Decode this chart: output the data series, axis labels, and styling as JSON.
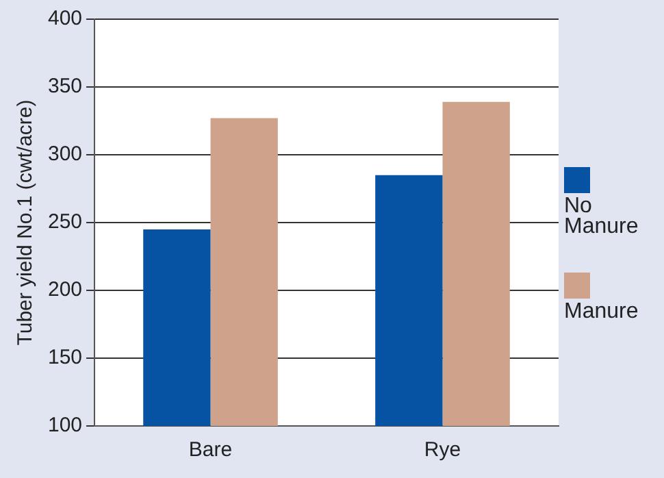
{
  "chart_data": {
    "type": "bar",
    "ylabel": "Tuber yield No.1 (cwt/acre)",
    "categories": [
      "Bare",
      "Rye"
    ],
    "series": [
      {
        "name": "No Manure",
        "color": "#0753a3",
        "values": [
          245,
          285
        ]
      },
      {
        "name": "Manure",
        "color": "#cfa28b",
        "values": [
          327,
          339
        ]
      }
    ],
    "ylim": [
      100,
      400
    ],
    "yticks": [
      100,
      150,
      200,
      250,
      300,
      350,
      400
    ],
    "grid": "y",
    "legend": "right"
  }
}
